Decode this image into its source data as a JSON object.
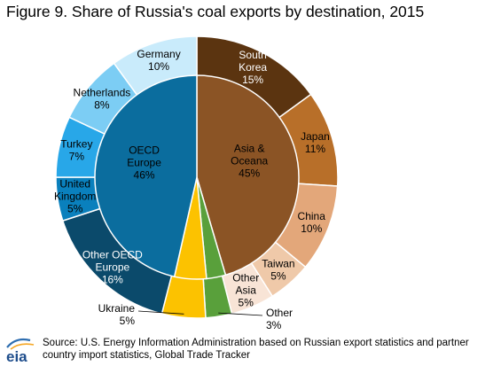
{
  "title": "Figure 9. Share of Russia's coal exports by destination, 2015",
  "source": {
    "line1": "Source: U.S. Energy Information Administration based on Russian export statistics and partner",
    "line2": "country import statistics, Global Trade Tracker"
  },
  "logo_text": "eia",
  "chart_data": {
    "type": "pie",
    "title": "Figure 9. Share of Russia's coal exports by destination, 2015",
    "unit": "%",
    "inner_ring": [
      {
        "name": "Asia & Oceana",
        "lines": [
          "Asia &",
          "Oceana",
          "45%"
        ],
        "value": 45,
        "color": "#8b5425",
        "text_color": "#000000"
      },
      {
        "name": "Other",
        "lines": [],
        "value": 3,
        "color": "#59a03b",
        "text_color": "#000000"
      },
      {
        "name": "Ukraine",
        "lines": [],
        "value": 5,
        "color": "#fcc200",
        "text_color": "#000000"
      },
      {
        "name": "OECD Europe",
        "lines": [
          "OECD",
          "Europe",
          "46%"
        ],
        "value": 46,
        "color": "#0b6d9e",
        "text_color": "#000000"
      }
    ],
    "outer_ring": [
      {
        "name": "South Korea",
        "lines": [
          "South",
          "Korea",
          "15%"
        ],
        "value": 15,
        "color": "#5b3410",
        "text_color": "#ffffff"
      },
      {
        "name": "Japan",
        "lines": [
          "Japan",
          "11%"
        ],
        "value": 11,
        "color": "#b86f29",
        "text_color": "#000000"
      },
      {
        "name": "China",
        "lines": [
          "China",
          "10%"
        ],
        "value": 10,
        "color": "#e3a77a",
        "text_color": "#000000"
      },
      {
        "name": "Taiwan",
        "lines": [
          "Taiwan",
          "5%"
        ],
        "value": 5,
        "color": "#efc9a9",
        "text_color": "#000000"
      },
      {
        "name": "Other Asia",
        "lines": [
          "Other",
          "Asia",
          "5%"
        ],
        "value": 5,
        "color": "#f8e4d6",
        "text_color": "#000000"
      },
      {
        "name": "Other",
        "lines": [
          "Other",
          "3%"
        ],
        "value": 3,
        "color": "#59a03b",
        "text_color": "#000000"
      },
      {
        "name": "Ukraine",
        "lines": [
          "Ukraine",
          "5%"
        ],
        "value": 5,
        "color": "#fcc200",
        "text_color": "#000000"
      },
      {
        "name": "Other OECD Europe",
        "lines": [
          "Other OECD",
          "Europe",
          "16%"
        ],
        "value": 16,
        "color": "#0b4a6b",
        "text_color": "#ffffff"
      },
      {
        "name": "United Kingdom",
        "lines": [
          "United",
          "Kingdom",
          "5%"
        ],
        "value": 5,
        "color": "#0a80bd",
        "text_color": "#000000"
      },
      {
        "name": "Turkey",
        "lines": [
          "Turkey",
          "7%"
        ],
        "value": 7,
        "color": "#28a7e8",
        "text_color": "#000000"
      },
      {
        "name": "Netherlands",
        "lines": [
          "Netherlands",
          "8%"
        ],
        "value": 8,
        "color": "#7ccdf4",
        "text_color": "#000000"
      },
      {
        "name": "Germany",
        "lines": [
          "Germany",
          "10%"
        ],
        "value": 10,
        "color": "#c9ebfb",
        "text_color": "#000000"
      }
    ]
  }
}
